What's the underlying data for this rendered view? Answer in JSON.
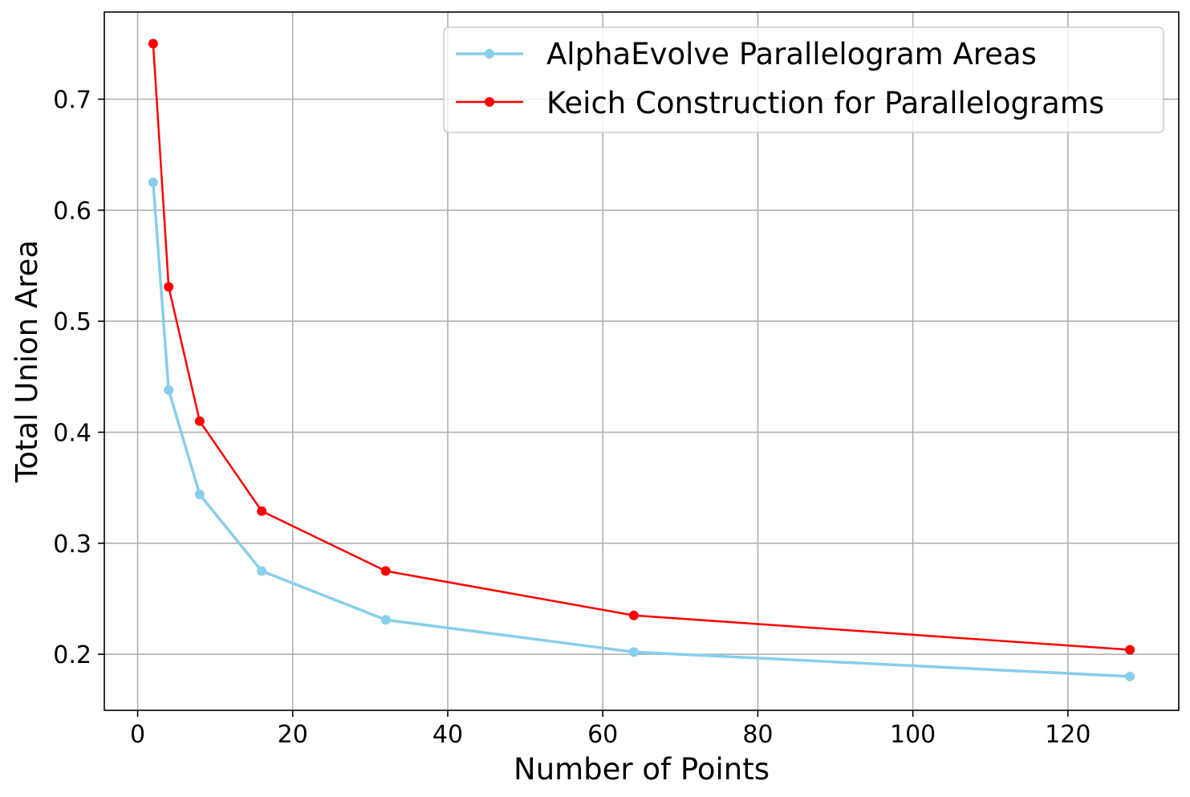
{
  "chart_data": {
    "type": "line",
    "title": "",
    "xlabel": "Number of Points",
    "ylabel": "Total Union Area",
    "xlim": [
      -4.3,
      134.3
    ],
    "ylim": [
      0.1495,
      0.7785
    ],
    "xticks": [
      0,
      20,
      40,
      60,
      80,
      100,
      120
    ],
    "xtick_labels": [
      "0",
      "20",
      "40",
      "60",
      "80",
      "100",
      "120"
    ],
    "yticks": [
      0.2,
      0.3,
      0.4,
      0.5,
      0.6,
      0.7
    ],
    "ytick_labels": [
      "0.2",
      "0.3",
      "0.4",
      "0.5",
      "0.6",
      "0.7"
    ],
    "grid": true,
    "legend_position": "top-right",
    "x": [
      2,
      4,
      8,
      16,
      32,
      64,
      128
    ],
    "series": [
      {
        "name": "AlphaEvolve Parallelogram Areas",
        "color": "#87ceeb",
        "values": [
          0.625,
          0.438,
          0.344,
          0.275,
          0.231,
          0.202,
          0.18
        ]
      },
      {
        "name": "Keich Construction for Parallelograms",
        "color": "#ff0000",
        "values": [
          0.75,
          0.531,
          0.41,
          0.329,
          0.275,
          0.235,
          0.204
        ]
      }
    ]
  }
}
